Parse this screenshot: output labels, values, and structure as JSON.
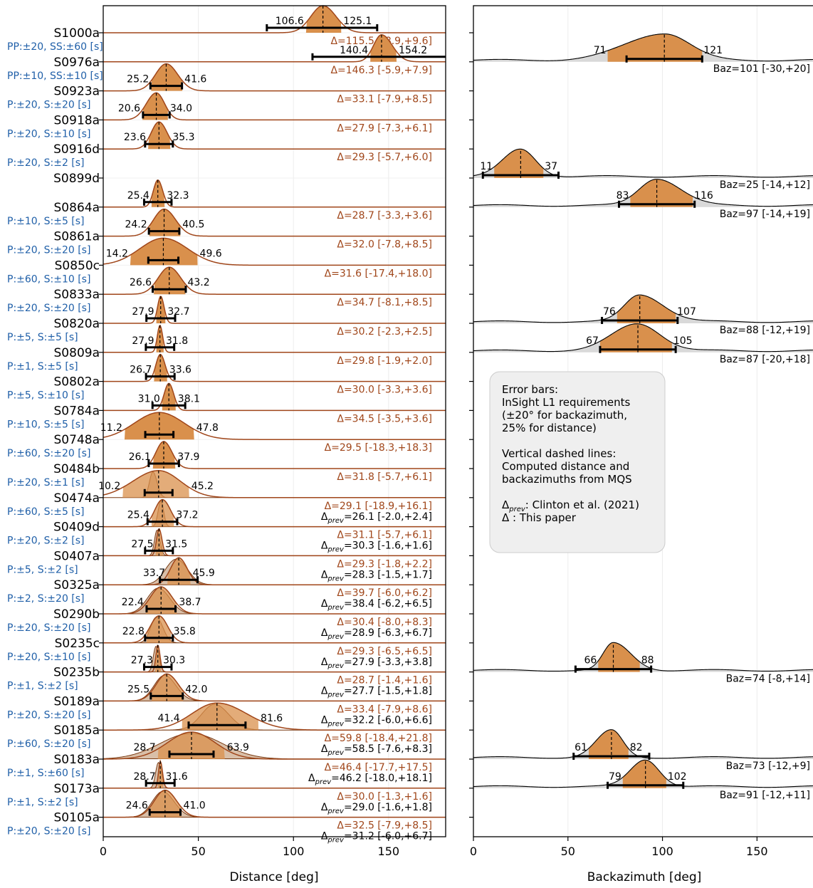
{
  "chart_data": [
    {
      "type": "area",
      "xlabel": "Distance [deg]",
      "xlim": [
        0,
        180
      ],
      "xticks": [
        0,
        50,
        100,
        150
      ],
      "events": [
        {
          "name": "S1000a",
          "phases": "PP:±20, SS:±60 [s]",
          "lo": 106.6,
          "hi": 125.1,
          "center": 115.5,
          "bar": [
            86,
            144
          ],
          "delta": "Δ=115.5 [-8.9,+9.6]"
        },
        {
          "name": "S0976a",
          "phases": "PP:±10, SS:±10 [s]",
          "lo": 140.4,
          "hi": 154.2,
          "center": 146.3,
          "bar": [
            110,
            182
          ],
          "delta": "Δ=146.3 [-5.9,+7.9]"
        },
        {
          "name": "S0923a",
          "phases": "P:±20, S:±20 [s]",
          "lo": 25.2,
          "hi": 41.6,
          "center": 33.1,
          "bar": [
            24.8,
            41.4
          ],
          "delta": "Δ=33.1 [-7.9,+8.5]"
        },
        {
          "name": "S0918a",
          "phases": "P:±20, S:±10 [s]",
          "lo": 20.6,
          "hi": 34.0,
          "center": 27.9,
          "bar": [
            20.9,
            34.9
          ],
          "delta": "Δ=27.9 [-7.3,+6.1]"
        },
        {
          "name": "S0916d",
          "phases": "P:±20, S:±2 [s]",
          "lo": 23.6,
          "hi": 35.3,
          "center": 29.3,
          "bar": [
            22,
            36.6
          ],
          "delta": "Δ=29.3 [-5.7,+6.0]"
        },
        {
          "name": "S0899d",
          "phases": "",
          "lo": null,
          "hi": null,
          "center": null,
          "bar": null,
          "delta": ""
        },
        {
          "name": "S0864a",
          "phases": "P:±10, S:±5 [s]",
          "lo": 25.4,
          "hi": 32.3,
          "center": 28.7,
          "bar": [
            21.5,
            35.9
          ],
          "delta": "Δ=28.7 [-3.3,+3.6]"
        },
        {
          "name": "S0861a",
          "phases": "P:±20, S:±20 [s]",
          "lo": 24.2,
          "hi": 40.5,
          "center": 32.0,
          "bar": [
            24,
            40
          ],
          "delta": "Δ=32.0 [-7.8,+8.5]"
        },
        {
          "name": "S0850c",
          "phases": "P:±60, S:±10 [s]",
          "lo": 14.2,
          "hi": 49.6,
          "center": 31.6,
          "bar": [
            23.7,
            39.5
          ],
          "delta": "Δ=31.6 [-17.4,+18.0]"
        },
        {
          "name": "S0833a",
          "phases": "P:±20, S:±20 [s]",
          "lo": 26.6,
          "hi": 43.2,
          "center": 34.7,
          "bar": [
            26,
            43.4
          ],
          "delta": "Δ=34.7 [-8.1,+8.5]"
        },
        {
          "name": "S0820a",
          "phases": "P:±5, S:±5 [s]",
          "lo": 27.9,
          "hi": 32.7,
          "center": 30.2,
          "bar": [
            22.7,
            37.8
          ],
          "delta": "Δ=30.2 [-2.3,+2.5]"
        },
        {
          "name": "S0809a",
          "phases": "P:±1, S:±5 [s]",
          "lo": 27.9,
          "hi": 31.8,
          "center": 29.8,
          "bar": [
            22.4,
            37.3
          ],
          "delta": "Δ=29.8 [-1.9,+2.0]"
        },
        {
          "name": "S0802a",
          "phases": "P:±5, S:±10 [s]",
          "lo": 26.7,
          "hi": 33.6,
          "center": 30.0,
          "bar": [
            22.5,
            37.5
          ],
          "delta": "Δ=30.0 [-3.3,+3.6]"
        },
        {
          "name": "S0784a",
          "phases": "P:±10, S:±5 [s]",
          "lo": 31.0,
          "hi": 38.1,
          "center": 34.5,
          "bar": [
            25.9,
            43.1
          ],
          "delta": "Δ=34.5 [-3.5,+3.6]"
        },
        {
          "name": "S0748a",
          "phases": "P:±60, S:±20 [s]",
          "lo": 11.2,
          "hi": 47.8,
          "center": 29.5,
          "bar": [
            22.1,
            36.9
          ],
          "delta": "Δ=29.5 [-18.3,+18.3]"
        },
        {
          "name": "S0484b",
          "phases": "P:±20, S:±1 [s]",
          "lo": 26.1,
          "hi": 37.9,
          "center": 31.8,
          "bar": [
            23.9,
            39.8
          ],
          "delta": "Δ=31.8 [-5.7,+6.1]"
        },
        {
          "name": "S0474a",
          "phases": "P:±60, S:±5 [s]",
          "lo": 10.2,
          "hi": 45.2,
          "center": 29.1,
          "bar": [
            21.8,
            36.4
          ],
          "delta": "Δ=29.1 [-18.9,+16.1]",
          "delta_prev": "Δprev=26.1 [-2.0,+2.4]"
        },
        {
          "name": "S0409d",
          "phases": "P:±20, S:±2 [s]",
          "lo": 25.4,
          "hi": 37.2,
          "center": 31.1,
          "bar": [
            23.3,
            38.9
          ],
          "delta": "Δ=31.1 [-5.7,+6.1]",
          "delta_prev": "Δprev=30.3 [-1.6,+1.6]"
        },
        {
          "name": "S0407a",
          "phases": "P:±5, S:±2 [s]",
          "lo": 27.5,
          "hi": 31.5,
          "center": 29.3,
          "bar": [
            22,
            36.6
          ],
          "delta": "Δ=29.3 [-1.8,+2.2]",
          "delta_prev": "Δprev=28.3 [-1.5,+1.7]"
        },
        {
          "name": "S0325a",
          "phases": "P:±2, S:±20 [s]",
          "lo": 33.7,
          "hi": 45.9,
          "center": 39.7,
          "bar": [
            29.8,
            49.6
          ],
          "delta": "Δ=39.7 [-6.0,+6.2]",
          "delta_prev": "Δprev=38.4 [-6.2,+6.5]"
        },
        {
          "name": "S0290b",
          "phases": "P:±20, S:±20 [s]",
          "lo": 22.4,
          "hi": 38.7,
          "center": 30.4,
          "bar": [
            22.8,
            38.0
          ],
          "delta": "Δ=30.4 [-8.0,+8.3]",
          "delta_prev": "Δprev=28.9 [-6.3,+6.7]"
        },
        {
          "name": "S0235c",
          "phases": "P:±20, S:±10 [s]",
          "lo": 22.8,
          "hi": 35.8,
          "center": 29.3,
          "bar": [
            22,
            36.6
          ],
          "delta": "Δ=29.3 [-6.5,+6.5]",
          "delta_prev": "Δprev=27.9 [-3.3,+3.8]"
        },
        {
          "name": "S0235b",
          "phases": "P:±1, S:±2 [s]",
          "lo": 27.3,
          "hi": 30.3,
          "center": 28.7,
          "bar": [
            21.5,
            35.9
          ],
          "delta": "Δ=28.7 [-1.4,+1.6]",
          "delta_prev": "Δprev=27.7 [-1.5,+1.8]"
        },
        {
          "name": "S0189a",
          "phases": "P:±20, S:±20 [s]",
          "lo": 25.5,
          "hi": 42.0,
          "center": 33.4,
          "bar": [
            25,
            41.8
          ],
          "delta": "Δ=33.4 [-7.9,+8.6]",
          "delta_prev": "Δprev=32.2 [-6.0,+6.6]"
        },
        {
          "name": "S0185a",
          "phases": "P:±60, S:±20 [s]",
          "lo": 41.4,
          "hi": 81.6,
          "center": 59.8,
          "bar": [
            44.9,
            74.8
          ],
          "delta": "Δ=59.8 [-18.4,+21.8]",
          "delta_prev": "Δprev=58.5 [-7.6,+8.3]"
        },
        {
          "name": "S0183a",
          "phases": "P:±1, S:±60 [s]",
          "lo": 28.7,
          "hi": 63.9,
          "center": 46.4,
          "bar": [
            34.8,
            58
          ],
          "delta": "Δ=46.4 [-17.7,+17.5]",
          "delta_prev": "Δprev=46.2 [-18.0,+18.1]"
        },
        {
          "name": "S0173a",
          "phases": "P:±1, S:±2 [s]",
          "lo": 28.7,
          "hi": 31.6,
          "center": 30.0,
          "bar": [
            22.5,
            37.5
          ],
          "delta": "Δ=30.0 [-1.3,+1.6]",
          "delta_prev": "Δprev=29.0 [-1.6,+1.8]"
        },
        {
          "name": "S0105a",
          "phases": "P:±20, S:±20 [s]",
          "lo": 24.6,
          "hi": 41.0,
          "center": 32.5,
          "bar": [
            24.4,
            40.6
          ],
          "delta": "Δ=32.5 [-7.9,+8.5]",
          "delta_prev": "Δprev=31.2 [-6.0,+6.7]"
        }
      ]
    },
    {
      "type": "area",
      "xlabel": "Backazimuth [deg]",
      "xlim": [
        0,
        180
      ],
      "xticks": [
        0,
        50,
        100,
        150
      ],
      "events": [
        {
          "name": "S0976a",
          "lo": 71,
          "hi": 121,
          "center": 101,
          "bar": [
            81,
            121
          ],
          "baz": "Baz=101 [-30,+20]"
        },
        {
          "name": "S0899d",
          "lo": 11,
          "hi": 37,
          "center": 25,
          "bar": [
            5,
            45
          ],
          "baz": "Baz=25 [-14,+12]"
        },
        {
          "name": "S0864a",
          "lo": 83,
          "hi": 116,
          "center": 97,
          "bar": [
            77,
            117
          ],
          "baz": "Baz=97 [-14,+19]"
        },
        {
          "name": "S0820a",
          "lo": 76,
          "hi": 107,
          "center": 88,
          "bar": [
            68,
            108
          ],
          "baz": "Baz=88 [-12,+19]"
        },
        {
          "name": "S0809a",
          "lo": 67,
          "hi": 105,
          "center": 87,
          "bar": [
            67,
            107
          ],
          "baz": "Baz=87 [-20,+18]"
        },
        {
          "name": "S0235b",
          "lo": 66,
          "hi": 88,
          "center": 74,
          "bar": [
            54,
            94
          ],
          "baz": "Baz=74 [-8,+14]"
        },
        {
          "name": "S0183a",
          "lo": 61,
          "hi": 82,
          "center": 73,
          "bar": [
            53,
            93
          ],
          "baz": "Baz=73 [-12,+9]"
        },
        {
          "name": "S0173a",
          "lo": 79,
          "hi": 102,
          "center": 91,
          "bar": [
            71,
            111
          ],
          "baz": "Baz=91 [-12,+11]"
        }
      ],
      "legend": {
        "lines": [
          "Error bars:",
          "InSight L1 requirements",
          "(±20° for backazimuth,",
          " 25% for distance)",
          "",
          "Vertical dashed lines:",
          "Computed distance and",
          "backazimuths from MQS",
          "",
          "Δprev: Clinton et al. (2021)",
          "Δ     : This paper"
        ]
      }
    }
  ],
  "colors": {
    "fill": "#d9904c",
    "fill_prev": "#d9bfa8",
    "line": "#a0461a",
    "tail": "#d9d9d9",
    "phase_text": "#1f5fa8",
    "delta_text": "#a0461a"
  }
}
